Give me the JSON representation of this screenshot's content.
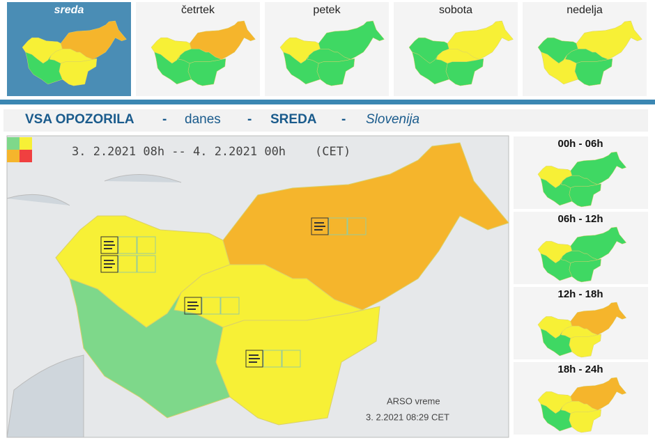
{
  "tabs": [
    {
      "label": "sreda",
      "colors": [
        "#f7f036",
        "#f7f036",
        "#f7f036",
        "#3fd863",
        "#f5b52c"
      ]
    },
    {
      "label": "četrtek",
      "colors": [
        "#f7f036",
        "#3fd863",
        "#3fd863",
        "#3fd863",
        "#f5b52c"
      ]
    },
    {
      "label": "petek",
      "colors": [
        "#f7f036",
        "#3fd863",
        "#3fd863",
        "#3fd863",
        "#3fd863"
      ]
    },
    {
      "label": "sobota",
      "colors": [
        "#3fd863",
        "#f7f036",
        "#3fd863",
        "#3fd863",
        "#f7f036"
      ]
    },
    {
      "label": "nedelja",
      "colors": [
        "#3fd863",
        "#3fd863",
        "#3fd863",
        "#f7f036",
        "#f7f036"
      ]
    }
  ],
  "header": {
    "title": "VSA OPOZORILA",
    "sep": "-",
    "when": "danes",
    "day": "SREDA",
    "region": "Slovenija"
  },
  "map": {
    "period": "3. 2.2021  08h  --  4. 2.2021  00h",
    "zone": "(CET)",
    "source": "ARSO vreme",
    "issued": "3. 2.2021   08:29  CET",
    "colors": [
      "#f7f036",
      "#f7f036",
      "#f7f036",
      "#7ed88a",
      "#f5b52c"
    ]
  },
  "slots": [
    {
      "label": "00h - 06h",
      "colors": [
        "#f7f036",
        "#3fd863",
        "#3fd863",
        "#3fd863",
        "#3fd863"
      ]
    },
    {
      "label": "06h - 12h",
      "colors": [
        "#f7f036",
        "#3fd863",
        "#3fd863",
        "#3fd863",
        "#3fd863"
      ]
    },
    {
      "label": "12h - 18h",
      "colors": [
        "#f7f036",
        "#f7f036",
        "#f7f036",
        "#3fd863",
        "#f5b52c"
      ]
    },
    {
      "label": "18h - 24h",
      "colors": [
        "#f7f036",
        "#f7f036",
        "#f7f036",
        "#3fd863",
        "#f5b52c"
      ]
    }
  ]
}
